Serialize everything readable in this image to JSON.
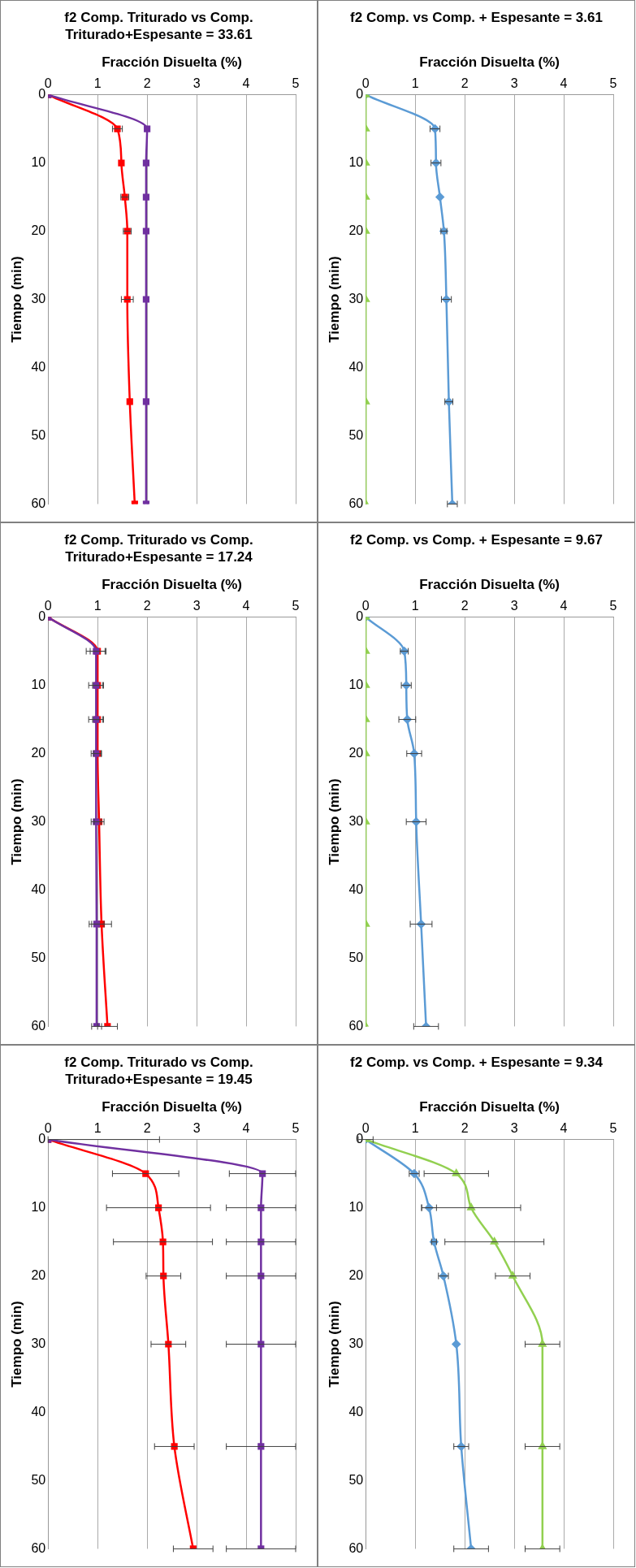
{
  "chart_data": [
    {
      "type": "line",
      "orientation": "horizontal",
      "title": "f2 Comp. vs Comp. + Espesante = 3.61",
      "ylabel": "Tiempo (min)",
      "xlabel": "Fracción Disuelta (%)",
      "x": [
        0,
        5,
        10,
        15,
        20,
        30,
        45,
        60
      ],
      "ylim": [
        60,
        0
      ],
      "yticks": [
        0,
        10,
        20,
        30,
        40,
        50,
        60
      ],
      "xlim": [
        0,
        5
      ],
      "xticks": [
        0,
        1,
        2,
        3,
        4,
        5
      ],
      "grid": "x",
      "legend": false,
      "series": [
        {
          "color": "#5b9bd5",
          "marker": "diamond",
          "values": [
            0,
            1.4,
            1.42,
            1.5,
            1.58,
            1.63,
            1.68,
            1.75
          ],
          "errors": [
            null,
            0.1,
            0.1,
            null,
            0.06,
            0.1,
            0.08,
            0.1
          ]
        },
        {
          "color": "#92d050",
          "marker": "triangle",
          "values": [
            0,
            0,
            0,
            0,
            0,
            0,
            0,
            0
          ]
        }
      ]
    },
    {
      "type": "line",
      "orientation": "horizontal",
      "title": "f2 Comp. vs Comp. + Espesante = 9.67",
      "ylabel": "Tiempo (min)",
      "xlabel": "Fracción Disuelta (%)",
      "x": [
        0,
        5,
        10,
        15,
        20,
        30,
        45,
        60
      ],
      "ylim": [
        60,
        0
      ],
      "yticks": [
        0,
        10,
        20,
        30,
        40,
        50,
        60
      ],
      "xlim": [
        0,
        5
      ],
      "xticks": [
        0,
        1,
        2,
        3,
        4,
        5
      ],
      "grid": "x",
      "legend": false,
      "series": [
        {
          "color": "#5b9bd5",
          "marker": "diamond",
          "values": [
            0,
            0.78,
            0.82,
            0.84,
            0.98,
            1.02,
            1.12,
            1.22
          ],
          "errors": [
            null,
            0.08,
            0.1,
            0.17,
            0.15,
            0.2,
            0.22,
            0.25
          ]
        },
        {
          "color": "#92d050",
          "marker": "triangle",
          "values": [
            0,
            0,
            0,
            0,
            0,
            0,
            0,
            0
          ]
        }
      ]
    },
    {
      "type": "line",
      "orientation": "horizontal",
      "title": "f2 Comp. vs Comp. + Espesante = 9.34",
      "ylabel": "Tiempo (min)",
      "xlabel": "Fracción Disuelta (%)",
      "x": [
        0,
        5,
        10,
        15,
        20,
        30,
        45,
        60
      ],
      "ylim": [
        60,
        0
      ],
      "yticks": [
        0,
        10,
        20,
        30,
        40,
        50,
        60
      ],
      "xlim": [
        0,
        5
      ],
      "xticks": [
        0,
        1,
        2,
        3,
        4,
        5
      ],
      "grid": "x",
      "legend": false,
      "series": [
        {
          "color": "#5b9bd5",
          "marker": "diamond",
          "values": [
            0,
            0.98,
            1.28,
            1.38,
            1.57,
            1.83,
            1.93,
            2.13
          ],
          "errors": [
            null,
            0.1,
            0.15,
            0.05,
            0.1,
            null,
            0.15,
            0.35
          ]
        },
        {
          "color": "#92d050",
          "marker": "triangle",
          "values": [
            0,
            1.83,
            2.13,
            2.6,
            2.97,
            3.57,
            3.57,
            3.57
          ],
          "errors": [
            0.15,
            0.65,
            1.0,
            1.0,
            0.35,
            0.35,
            0.35,
            0.35
          ]
        }
      ]
    },
    {
      "type": "line",
      "orientation": "horizontal",
      "title": "f2 Comp. Triturado vs Comp. Triturado+Espesante = 33.61",
      "ylabel": "Tiempo (min)",
      "xlabel": "Fracción Disuelta (%)",
      "x": [
        0,
        5,
        10,
        15,
        20,
        30,
        45,
        60
      ],
      "ylim": [
        60,
        0
      ],
      "yticks": [
        0,
        10,
        20,
        30,
        40,
        50,
        60
      ],
      "xlim": [
        0,
        5
      ],
      "xticks": [
        0,
        1,
        2,
        3,
        4,
        5
      ],
      "grid": "x",
      "legend": false,
      "series": [
        {
          "color": "#ff0000",
          "marker": "square",
          "values": [
            0,
            1.4,
            1.48,
            1.55,
            1.6,
            1.6,
            1.65,
            1.75
          ],
          "errors": [
            null,
            0.1,
            null,
            0.08,
            0.08,
            0.12,
            null,
            null
          ]
        },
        {
          "color": "#7030a0",
          "marker": "square",
          "values": [
            0,
            2,
            1.98,
            1.98,
            1.98,
            1.98,
            1.98,
            1.98
          ]
        }
      ]
    },
    {
      "type": "line",
      "orientation": "horizontal",
      "title": "f2 Comp. Triturado vs Comp. Triturado+Espesante = 17.24",
      "ylabel": "Tiempo (min)",
      "xlabel": "Fracción Disuelta (%)",
      "x": [
        0,
        5,
        10,
        15,
        20,
        30,
        45,
        60
      ],
      "ylim": [
        60,
        0
      ],
      "yticks": [
        0,
        10,
        20,
        30,
        40,
        50,
        60
      ],
      "xlim": [
        0,
        5
      ],
      "xticks": [
        0,
        1,
        2,
        3,
        4,
        5
      ],
      "grid": "x",
      "legend": false,
      "series": [
        {
          "color": "#ff0000",
          "marker": "square",
          "values": [
            0,
            1,
            1,
            1,
            1,
            1.03,
            1.08,
            1.2
          ],
          "errors": [
            null,
            0.15,
            0.1,
            0.1,
            0.08,
            0.1,
            0.2,
            0.2
          ]
        },
        {
          "color": "#7030a0",
          "marker": "square",
          "values": [
            0,
            0.97,
            0.97,
            0.97,
            0.97,
            0.97,
            0.98,
            0.98
          ],
          "errors": [
            null,
            0.2,
            0.15,
            0.15,
            0.1,
            0.1,
            0.15,
            0.1
          ]
        }
      ]
    },
    {
      "type": "line",
      "orientation": "horizontal",
      "title": "f2 Comp. Triturado vs Comp. Triturado+Espesante = 19.45",
      "ylabel": "Tiempo (min)",
      "xlabel": "Fracción Disuelta (%)",
      "x": [
        0,
        5,
        10,
        15,
        20,
        30,
        45,
        60
      ],
      "ylim": [
        60,
        0
      ],
      "yticks": [
        0,
        10,
        20,
        30,
        40,
        50,
        60
      ],
      "xlim": [
        0,
        5
      ],
      "xticks": [
        0,
        1,
        2,
        3,
        4,
        5
      ],
      "grid": "x",
      "legend": false,
      "series": [
        {
          "color": "#ff0000",
          "marker": "square",
          "values": [
            0,
            1.97,
            2.23,
            2.32,
            2.33,
            2.43,
            2.55,
            2.93
          ],
          "errors": [
            [
              0,
              2.25
            ],
            0.67,
            1.05,
            1.0,
            0.35,
            0.35,
            0.4,
            0.4
          ]
        },
        {
          "color": "#7030a0",
          "marker": "square",
          "values": [
            0,
            4.33,
            4.3,
            4.3,
            4.3,
            4.3,
            4.3,
            4.3
          ],
          "errors": [
            null,
            0.67,
            0.7,
            0.7,
            0.7,
            0.7,
            0.7,
            0.7
          ]
        }
      ]
    }
  ]
}
